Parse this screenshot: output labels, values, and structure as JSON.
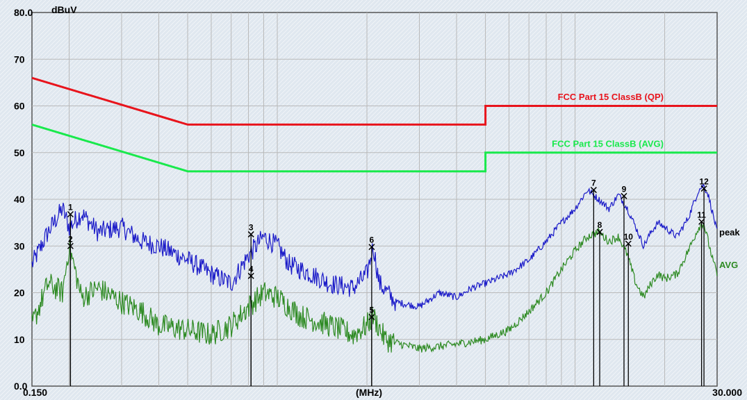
{
  "chart_data": {
    "type": "line",
    "ylabel": "dBuV",
    "xlabel": "(MHz)",
    "x_scale": "log",
    "xlim": [
      0.15,
      30.0
    ],
    "ylim": [
      0,
      80
    ],
    "y_ticks": [
      "0.0",
      "10",
      "20",
      "30",
      "40",
      "50",
      "60",
      "70",
      "80.0"
    ],
    "x_tick_labels": [
      {
        "x": 0.15,
        "label": "0.150"
      },
      {
        "x": 30.0,
        "label": "30.000"
      }
    ],
    "grid": true,
    "limit_lines": [
      {
        "name": "FCC  Part 15 ClassB (QP)",
        "color": "#e8141c",
        "points": [
          [
            0.15,
            66
          ],
          [
            0.5,
            56
          ],
          [
            5.0,
            56
          ],
          [
            5.0,
            60
          ],
          [
            30.0,
            60
          ]
        ]
      },
      {
        "name": "FCC  Part 15 ClassB (AVG)",
        "color": "#19e94c",
        "points": [
          [
            0.15,
            56
          ],
          [
            0.5,
            46
          ],
          [
            5.0,
            46
          ],
          [
            5.0,
            50
          ],
          [
            30.0,
            50
          ]
        ]
      }
    ],
    "series": [
      {
        "name": "peak",
        "color": "#1a1ac8",
        "points": [
          [
            0.15,
            26
          ],
          [
            0.17,
            33
          ],
          [
            0.19,
            38
          ],
          [
            0.2,
            34
          ],
          [
            0.22,
            37
          ],
          [
            0.25,
            33
          ],
          [
            0.3,
            34
          ],
          [
            0.35,
            31
          ],
          [
            0.4,
            30
          ],
          [
            0.5,
            27
          ],
          [
            0.6,
            24
          ],
          [
            0.7,
            22
          ],
          [
            0.8,
            28
          ],
          [
            0.9,
            32
          ],
          [
            1.0,
            30
          ],
          [
            1.1,
            26
          ],
          [
            1.3,
            24
          ],
          [
            1.5,
            22
          ],
          [
            1.8,
            21
          ],
          [
            2.0,
            24
          ],
          [
            2.1,
            30
          ],
          [
            2.2,
            22
          ],
          [
            2.5,
            18
          ],
          [
            3.0,
            17
          ],
          [
            3.5,
            20
          ],
          [
            4.0,
            19
          ],
          [
            4.5,
            21
          ],
          [
            5.0,
            22
          ],
          [
            6.0,
            24
          ],
          [
            7.0,
            27
          ],
          [
            8.0,
            31
          ],
          [
            9.0,
            35
          ],
          [
            10.0,
            38
          ],
          [
            11.0,
            42
          ],
          [
            12.0,
            40
          ],
          [
            13.0,
            38
          ],
          [
            14.0,
            41
          ],
          [
            15.0,
            38
          ],
          [
            16.0,
            34
          ],
          [
            17.0,
            30
          ],
          [
            18.0,
            33
          ],
          [
            19.0,
            35
          ],
          [
            20.0,
            34
          ],
          [
            22.0,
            32
          ],
          [
            24.0,
            36
          ],
          [
            26.0,
            42
          ],
          [
            27.0,
            43
          ],
          [
            28.0,
            41
          ],
          [
            29.0,
            37
          ],
          [
            30.0,
            33
          ]
        ]
      },
      {
        "name": "AVG",
        "color": "#2d8a22",
        "points": [
          [
            0.15,
            13
          ],
          [
            0.17,
            22
          ],
          [
            0.19,
            20
          ],
          [
            0.2,
            30
          ],
          [
            0.22,
            19
          ],
          [
            0.25,
            21
          ],
          [
            0.3,
            18
          ],
          [
            0.35,
            16
          ],
          [
            0.4,
            13
          ],
          [
            0.5,
            12
          ],
          [
            0.6,
            11
          ],
          [
            0.7,
            13
          ],
          [
            0.8,
            17
          ],
          [
            0.9,
            20
          ],
          [
            1.0,
            19
          ],
          [
            1.2,
            15
          ],
          [
            1.5,
            13
          ],
          [
            1.8,
            11
          ],
          [
            2.0,
            13
          ],
          [
            2.1,
            15
          ],
          [
            2.3,
            10
          ],
          [
            2.6,
            9
          ],
          [
            3.0,
            8
          ],
          [
            3.5,
            8.5
          ],
          [
            4.0,
            9
          ],
          [
            5.0,
            10
          ],
          [
            6.0,
            12
          ],
          [
            7.0,
            16
          ],
          [
            8.0,
            20
          ],
          [
            9.0,
            25
          ],
          [
            10.0,
            29
          ],
          [
            11.0,
            32
          ],
          [
            12.0,
            33
          ],
          [
            13.0,
            31
          ],
          [
            14.0,
            32
          ],
          [
            15.0,
            28
          ],
          [
            16.0,
            22
          ],
          [
            17.0,
            19
          ],
          [
            18.0,
            22
          ],
          [
            19.0,
            24
          ],
          [
            20.0,
            23
          ],
          [
            22.0,
            24
          ],
          [
            24.0,
            29
          ],
          [
            26.0,
            34
          ],
          [
            27.0,
            35
          ],
          [
            28.0,
            31
          ],
          [
            29.0,
            27
          ],
          [
            30.0,
            24
          ]
        ]
      }
    ],
    "markers": [
      {
        "label": "1",
        "x": 0.202,
        "y": 36.8
      },
      {
        "label": "2",
        "x": 0.202,
        "y": 30.0
      },
      {
        "label": "3",
        "x": 0.816,
        "y": 32.5
      },
      {
        "label": "4",
        "x": 0.816,
        "y": 23.6
      },
      {
        "label": "5",
        "x": 2.075,
        "y": 14.8
      },
      {
        "label": "6",
        "x": 2.075,
        "y": 29.8
      },
      {
        "label": "7",
        "x": 11.55,
        "y": 42.0
      },
      {
        "label": "8",
        "x": 12.1,
        "y": 33.0
      },
      {
        "label": "9",
        "x": 14.6,
        "y": 40.7
      },
      {
        "label": "10",
        "x": 15.1,
        "y": 30.5
      },
      {
        "label": "11",
        "x": 26.6,
        "y": 35.2
      },
      {
        "label": "12",
        "x": 27.1,
        "y": 42.3
      }
    ]
  }
}
